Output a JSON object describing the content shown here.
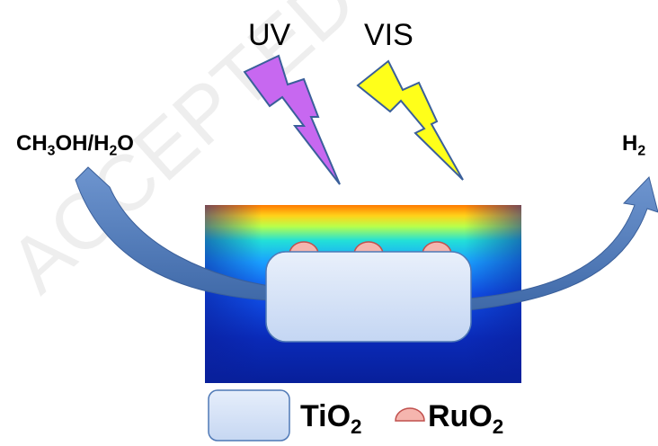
{
  "light": {
    "uv": "UV",
    "vis": "VIS"
  },
  "reactant": {
    "parts": [
      {
        "t": "CH"
      },
      {
        "t": "3",
        "sub": true
      },
      {
        "t": "OH/H"
      },
      {
        "t": "2",
        "sub": true
      },
      {
        "t": "O"
      }
    ]
  },
  "product": {
    "parts": [
      {
        "t": "H"
      },
      {
        "t": "2",
        "sub": true
      }
    ]
  },
  "legend": {
    "tio2": [
      {
        "t": "TiO"
      },
      {
        "t": "2",
        "sub": true
      }
    ],
    "ruo2": [
      {
        "t": "RuO"
      },
      {
        "t": "2",
        "sub": true
      }
    ]
  },
  "colors": {
    "uv_bolt": "#c768f0",
    "vis_bolt": "#ffff1a",
    "arrow": "#4f79b6",
    "particle": "#dce7f8",
    "ruo2": "#f5b5ae"
  },
  "watermark": "ACCEPTED MANUSCRIPT"
}
